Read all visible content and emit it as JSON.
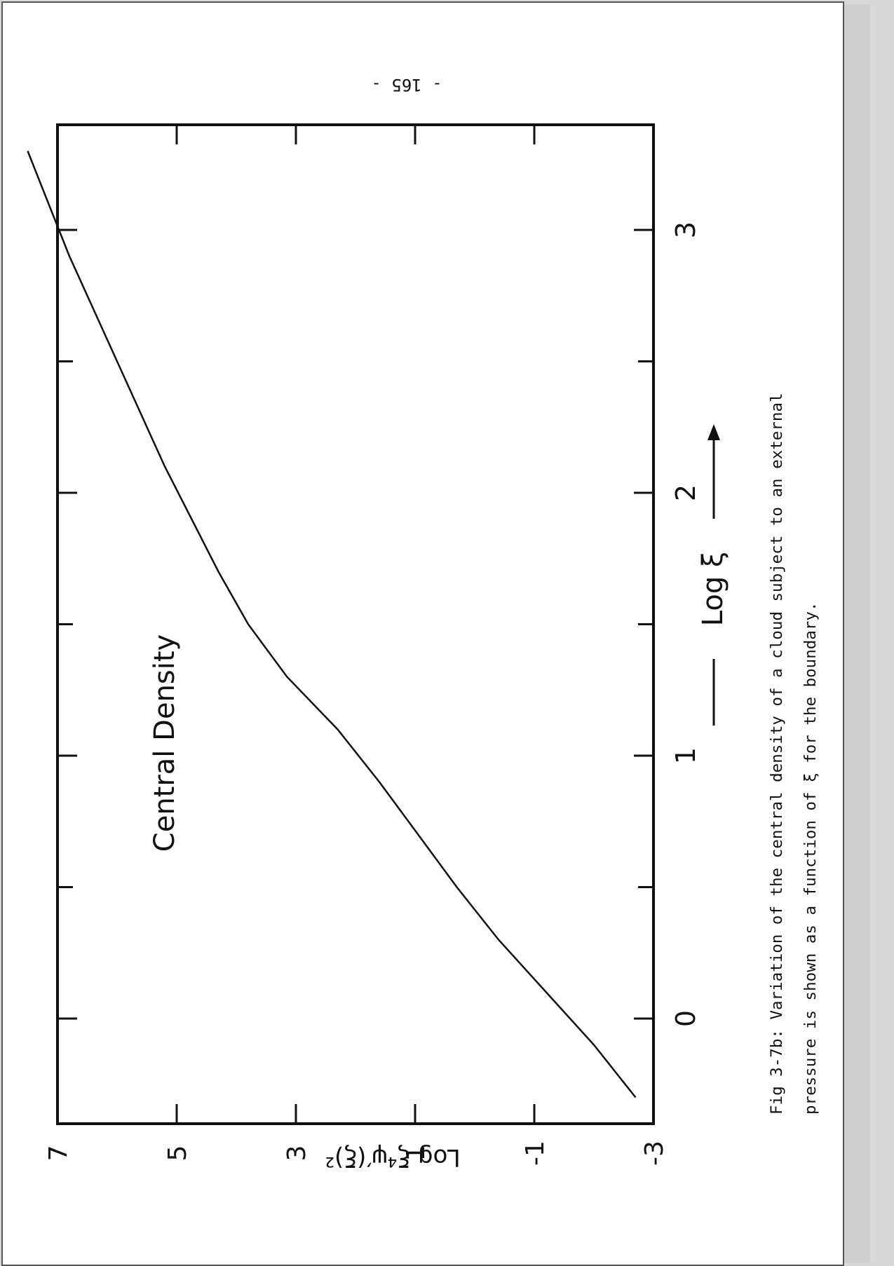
{
  "page_number": "- 165 -",
  "chart_data": {
    "type": "line",
    "title": "",
    "xlabel": "Log ξ",
    "ylabel": "Log ξ⁴ψ′(ξ)²",
    "annotation": "Central Density",
    "xlim": [
      -0.4,
      3.4
    ],
    "ylim": [
      -3,
      7
    ],
    "x_ticks": [
      0,
      1,
      2,
      3
    ],
    "y_ticks": [
      -3,
      -1,
      1,
      3,
      5,
      7
    ],
    "grid": false,
    "legend": "none",
    "series": [
      {
        "x": [
          -0.3,
          -0.1,
          0.1,
          0.3,
          0.5,
          0.7,
          0.9,
          1.1,
          1.3,
          1.5,
          1.7,
          1.9,
          2.1,
          2.3,
          2.5,
          2.7,
          2.9,
          3.1,
          3.3
        ],
        "y": [
          -2.7,
          -2.0,
          -1.2,
          -0.4,
          0.3,
          0.95,
          1.6,
          2.3,
          3.15,
          3.8,
          4.3,
          4.75,
          5.2,
          5.6,
          6.0,
          6.4,
          6.8,
          7.15,
          7.5
        ]
      }
    ]
  },
  "caption": {
    "line1": "Fig 3-7b:  Variation of the central density of a cloud subject to an external",
    "line2": "pressure is shown as a function of ξ for the boundary."
  }
}
